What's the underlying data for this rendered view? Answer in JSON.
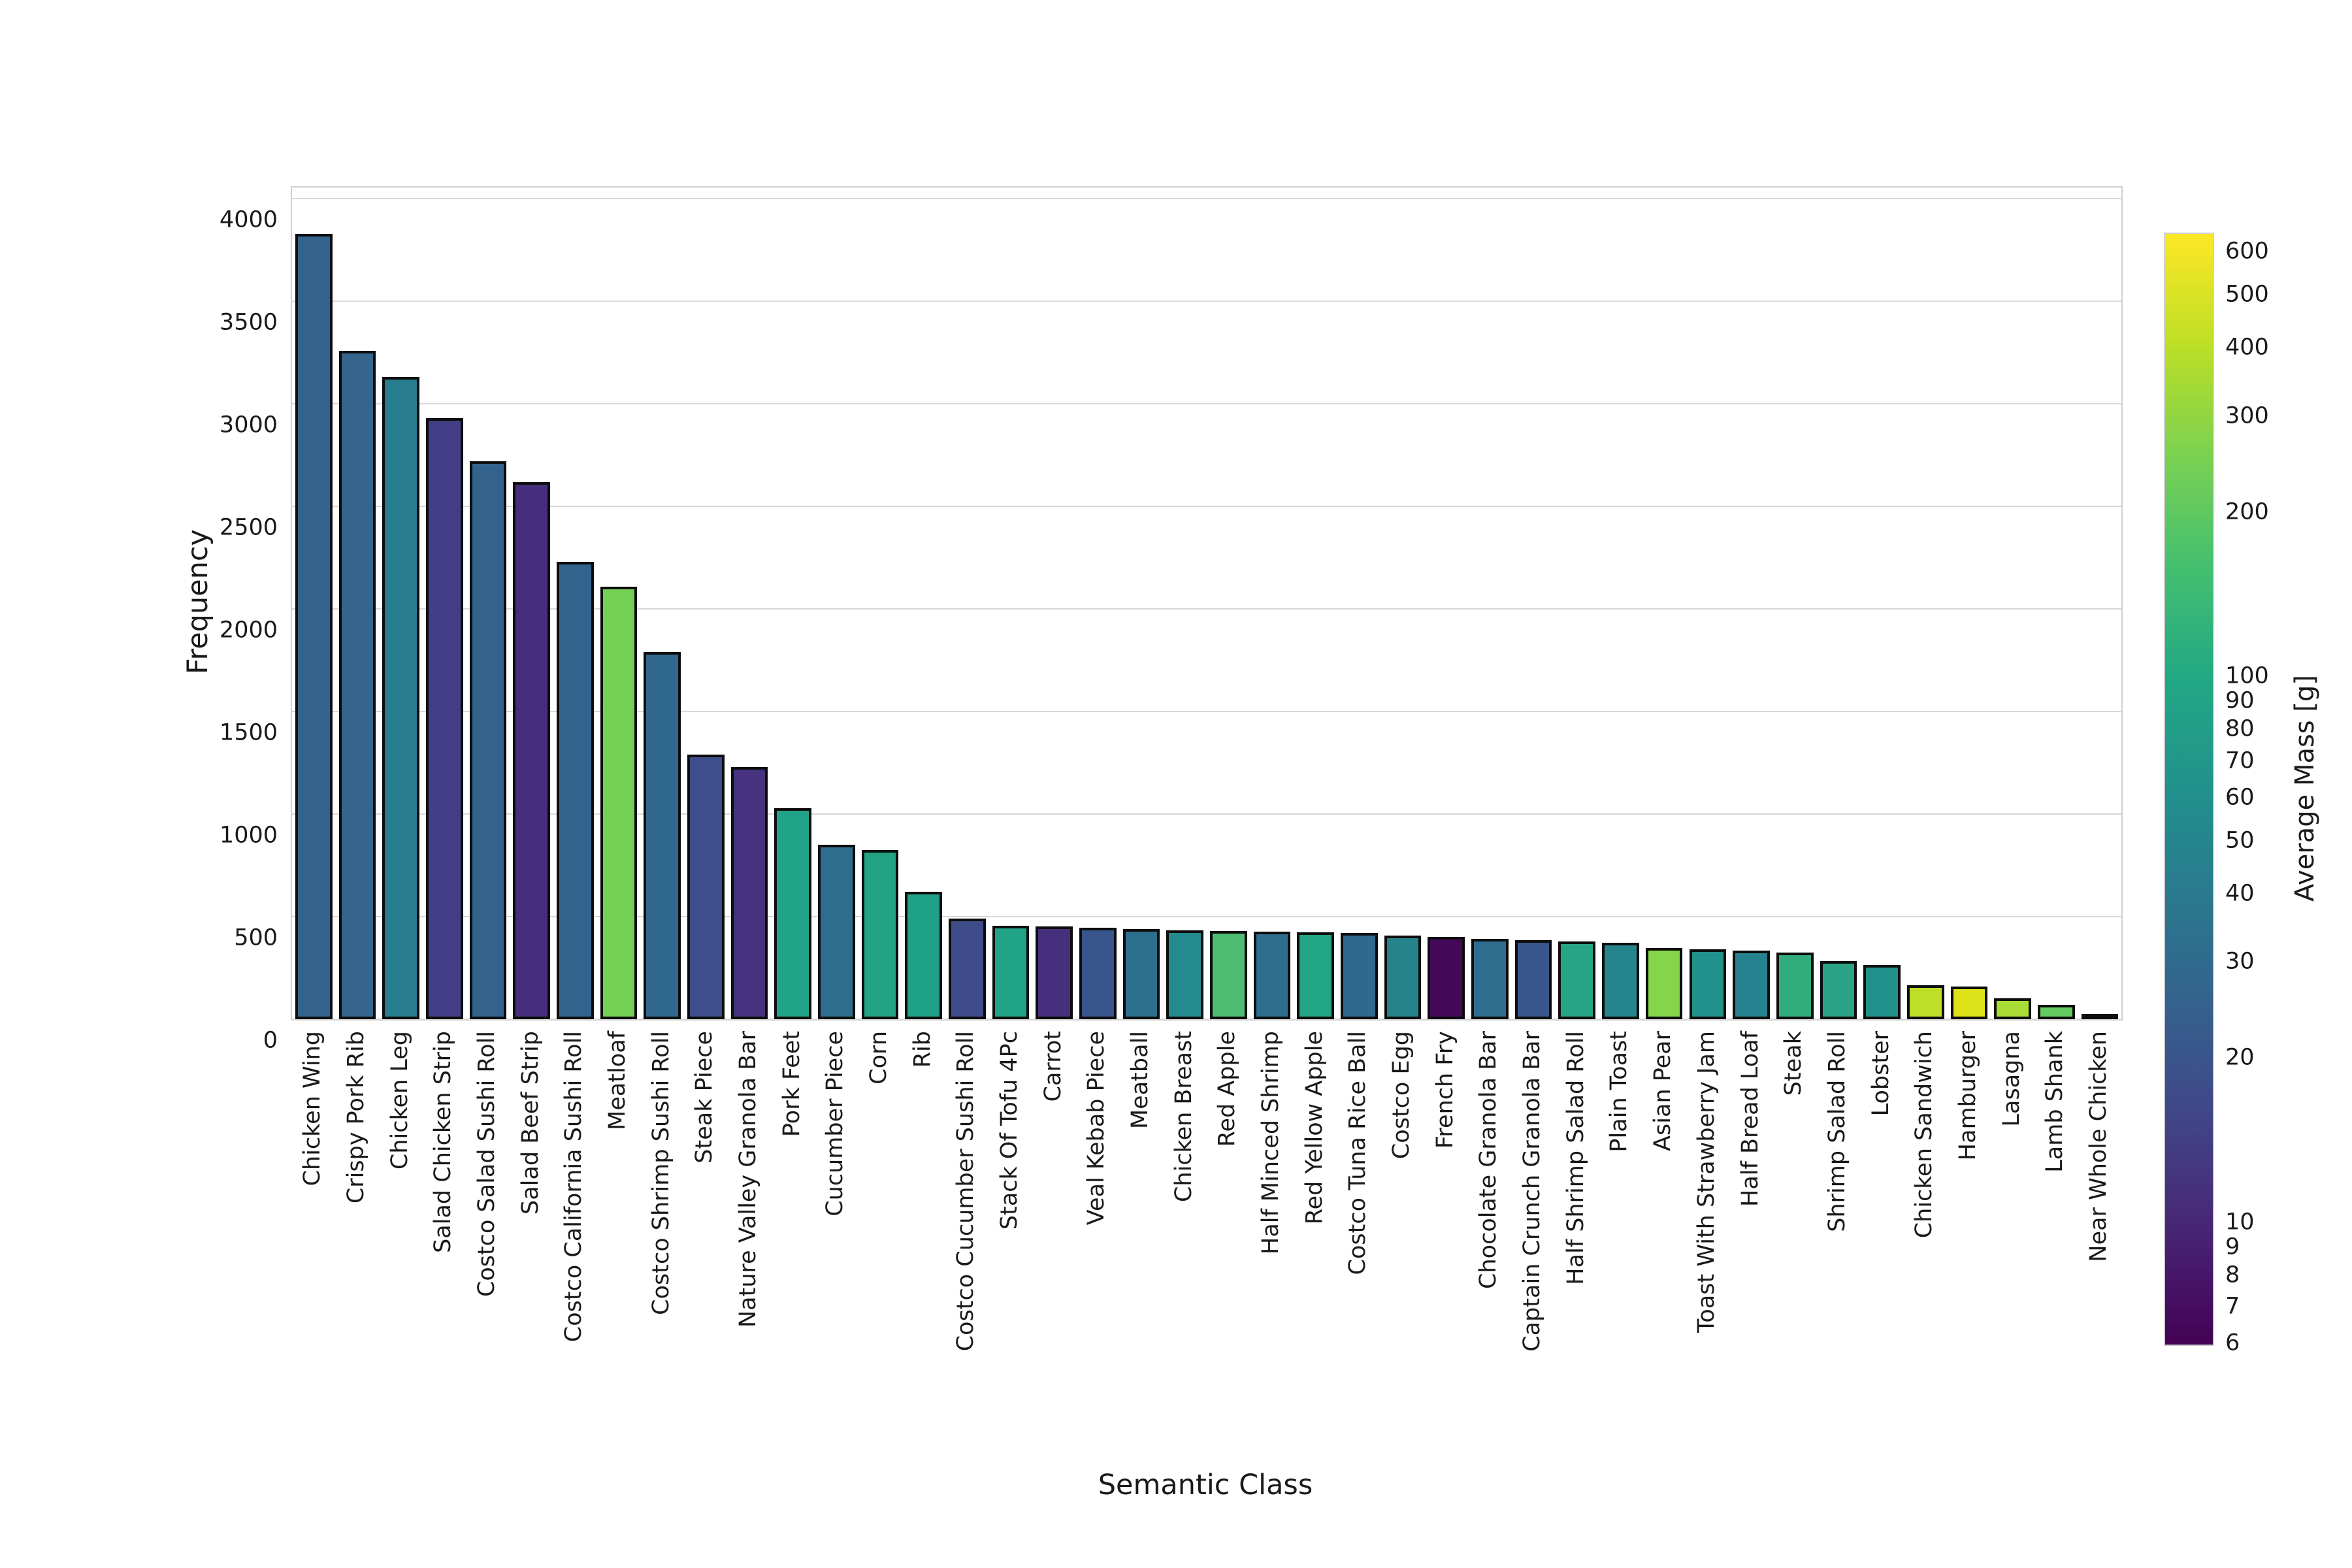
{
  "chart_data": {
    "type": "bar",
    "title": "",
    "xlabel": "Semantic Class",
    "ylabel": "Frequency",
    "colorbar_label": "Average Mass [g]",
    "ylim": [
      0,
      4055
    ],
    "yticks": [
      0,
      500,
      1000,
      1500,
      2000,
      2500,
      3000,
      3500,
      4000
    ],
    "grid": "horizontal",
    "legend_position": "none",
    "colormap": "viridis",
    "color_scale": "log",
    "color_domain": [
      6,
      650
    ],
    "colorbar_ticks": [
      600,
      500,
      400,
      300,
      200,
      100,
      90,
      80,
      70,
      60,
      50,
      40,
      30,
      20,
      10,
      9,
      8,
      7,
      6
    ],
    "categories": [
      "Chicken Wing",
      "Crispy Pork Rib",
      "Chicken Leg",
      "Salad Chicken Strip",
      "Costco Salad Sushi Roll",
      "Salad Beef Strip",
      "Costco California Sushi Roll",
      "Meatloaf",
      "Costco Shrimp Sushi Roll",
      "Steak Piece",
      "Nature Valley Granola Bar",
      "Pork Feet",
      "Cucumber Piece",
      "Corn",
      "Rib",
      "Costco Cucumber Sushi Roll",
      "Stack Of Tofu 4Pc",
      "Carrot",
      "Veal Kebab Piece",
      "Meatball",
      "Chicken Breast",
      "Red Apple",
      "Half Minced Shrimp",
      "Red Yellow Apple",
      "Costco Tuna Rice Ball",
      "Costco Egg",
      "French Fry",
      "Chocolate Granola Bar",
      "Captain Crunch Granola Bar",
      "Half Shrimp Salad Roll",
      "Plain Toast",
      "Asian Pear",
      "Toast With Strawberry Jam",
      "Half Bread Loaf",
      "Steak",
      "Shrimp Salad Roll",
      "Lobster",
      "Chicken Sandwich",
      "Hamburger",
      "Lasagna",
      "Lamb Shank",
      "Near Whole Chicken"
    ],
    "values": [
      3830,
      3260,
      3130,
      2930,
      2720,
      2620,
      2230,
      2110,
      1790,
      1290,
      1230,
      1030,
      850,
      825,
      620,
      490,
      456,
      451,
      445,
      440,
      434,
      431,
      427,
      424,
      420,
      409,
      402,
      391,
      385,
      380,
      374,
      348,
      342,
      335,
      325,
      282,
      265,
      165,
      158,
      102,
      70,
      12
    ],
    "bar_colors": [
      "#33638d",
      "#35648d",
      "#287d8e",
      "#433e85",
      "#33628d",
      "#472e7c",
      "#32648e",
      "#74d055",
      "#31688e",
      "#3d4e8a",
      "#46327e",
      "#20a386",
      "#2e6d8e",
      "#23a284",
      "#1fa187",
      "#3e4c8a",
      "#20a386",
      "#46307e",
      "#39568c",
      "#2d708e",
      "#238a8d",
      "#4fbc73",
      "#2e6d8e",
      "#21a585",
      "#31688e",
      "#26838a",
      "#45095a",
      "#2e6d8e",
      "#39568c",
      "#27a485",
      "#25848c",
      "#85d54a",
      "#21918c",
      "#26828e",
      "#2fad7c",
      "#2aa285",
      "#21918c",
      "#bddf26",
      "#dde318",
      "#a8db34",
      "#63cb5f",
      "#fde725"
    ],
    "avg_mass_g_estimated": [
      27,
      26,
      43,
      14,
      26,
      10,
      27,
      245,
      30,
      18,
      11,
      93,
      34,
      92,
      89,
      17,
      93,
      11,
      20,
      36,
      54,
      160,
      34,
      95,
      30,
      47,
      7,
      34,
      20,
      95,
      48,
      295,
      66,
      47,
      115,
      93,
      66,
      410,
      495,
      340,
      200,
      650
    ]
  }
}
